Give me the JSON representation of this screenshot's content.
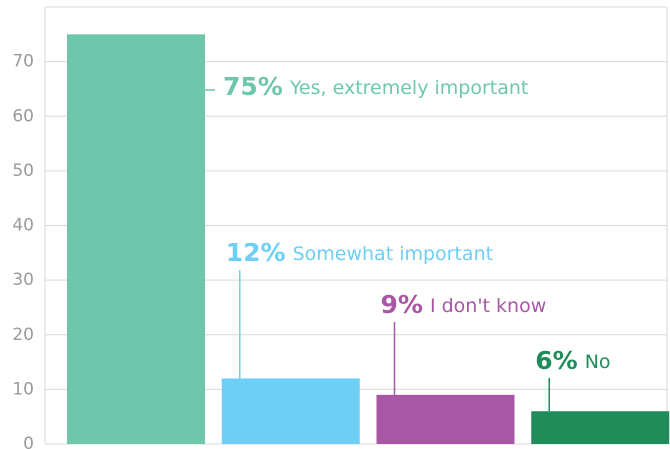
{
  "chart_data": {
    "type": "bar",
    "categories": [
      "Yes, extremely important",
      "Somewhat important",
      "I don't know",
      "No"
    ],
    "values": [
      75,
      12,
      9,
      6
    ],
    "value_labels": [
      "75%",
      "12%",
      "9%",
      "6%"
    ],
    "colors": [
      "#6fc7ab",
      "#6dcff6",
      "#a757a4",
      "#1f8c5a"
    ],
    "ylim": [
      0,
      80
    ],
    "yticks": [
      0,
      10,
      20,
      30,
      40,
      50,
      60,
      70
    ],
    "grid": true
  }
}
